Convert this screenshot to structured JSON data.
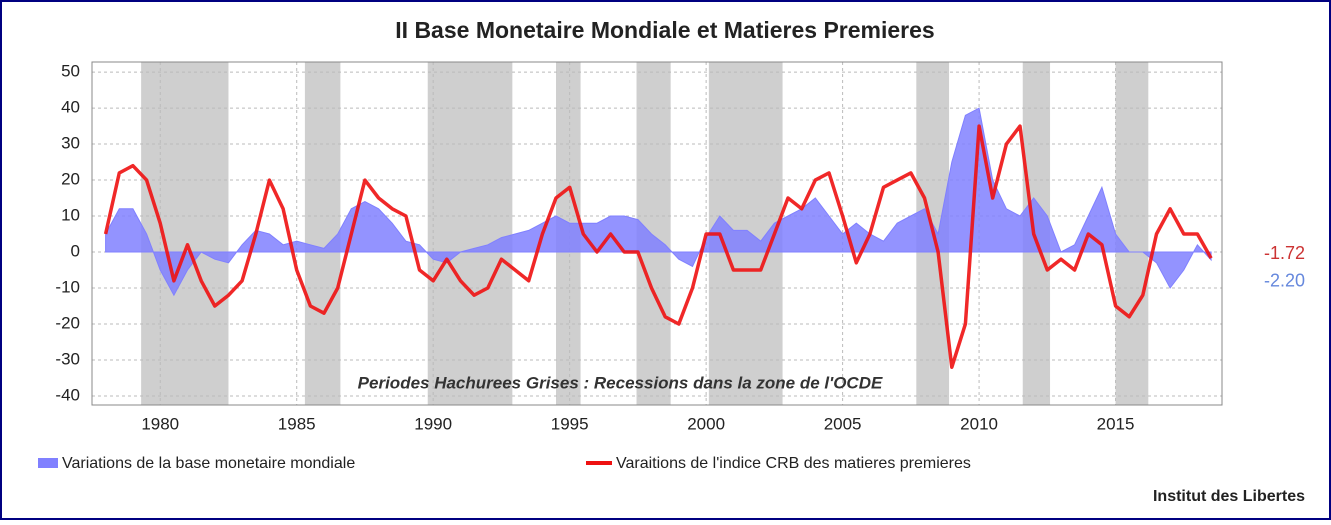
{
  "chart_data": {
    "type": "line",
    "title": "II Base Monetaire Mondiale et Matieres Premieres",
    "annotation": "Periodes Hachurees Grises : Recessions dans la zone de l'OCDE",
    "source": "Institut des Libertes",
    "xlim": [
      1977.5,
      2018.9
    ],
    "xticks": [
      1980,
      1985,
      1990,
      1995,
      2000,
      2005,
      2010,
      2015
    ],
    "ylim": [
      -42.5,
      52.8
    ],
    "yticks": [
      -40,
      -30,
      -20,
      -10,
      0,
      10,
      20,
      30,
      40,
      50
    ],
    "grid": true,
    "recessions": [
      [
        1979.3,
        1982.5
      ],
      [
        1985.3,
        1986.6
      ],
      [
        1989.8,
        1992.9
      ],
      [
        1994.5,
        1995.4
      ],
      [
        1997.45,
        1998.7
      ],
      [
        2000.1,
        2002.8
      ],
      [
        2007.7,
        2008.9
      ],
      [
        2011.6,
        2012.6
      ],
      [
        2015.0,
        2016.2
      ]
    ],
    "x": [
      1978.0,
      1978.5,
      1979.0,
      1979.5,
      1980.0,
      1980.5,
      1981.0,
      1981.5,
      1982.0,
      1982.5,
      1983.0,
      1983.5,
      1984.0,
      1984.5,
      1985.0,
      1985.5,
      1986.0,
      1986.5,
      1987.0,
      1987.5,
      1988.0,
      1988.5,
      1989.0,
      1989.5,
      1990.0,
      1990.5,
      1991.0,
      1991.5,
      1992.0,
      1992.5,
      1993.0,
      1993.5,
      1994.0,
      1994.5,
      1995.0,
      1995.5,
      1996.0,
      1996.5,
      1997.0,
      1997.5,
      1998.0,
      1998.5,
      1999.0,
      1999.5,
      2000.0,
      2000.5,
      2001.0,
      2001.5,
      2002.0,
      2002.5,
      2003.0,
      2003.5,
      2004.0,
      2004.5,
      2005.0,
      2005.5,
      2006.0,
      2006.5,
      2007.0,
      2007.5,
      2008.0,
      2008.5,
      2009.0,
      2009.5,
      2010.0,
      2010.5,
      2011.0,
      2011.5,
      2012.0,
      2012.5,
      2013.0,
      2013.5,
      2014.0,
      2014.5,
      2015.0,
      2015.5,
      2016.0,
      2016.5,
      2017.0,
      2017.5,
      2018.0,
      2018.5
    ],
    "series": [
      {
        "name": "Variations de la base monetaire mondiale",
        "kind": "area",
        "color": "#8080ff",
        "end_label": "-2.20",
        "values": [
          5,
          12,
          12,
          5,
          -5,
          -12,
          -5,
          0,
          -2,
          -3,
          2,
          6,
          5,
          2,
          3,
          2,
          1,
          5,
          12,
          14,
          12,
          8,
          3,
          2,
          -2,
          -3,
          0,
          1,
          2,
          4,
          5,
          6,
          8,
          10,
          8,
          8,
          8,
          10,
          10,
          9,
          5,
          2,
          -2,
          -4,
          4,
          10,
          6,
          6,
          3,
          8,
          10,
          12,
          15,
          10,
          5,
          8,
          5,
          3,
          8,
          10,
          12,
          5,
          25,
          38,
          40,
          20,
          12,
          10,
          15,
          10,
          0,
          2,
          10,
          18,
          5,
          0,
          0,
          -3,
          -10,
          -5,
          2,
          -2.2
        ]
      },
      {
        "name": "Varaitions de l'indice CRB des matieres premieres",
        "kind": "line",
        "color": "#ee1111",
        "end_label": "-1.72",
        "values": [
          5,
          22,
          24,
          20,
          8,
          -8,
          2,
          -8,
          -15,
          -12,
          -8,
          5,
          20,
          12,
          -5,
          -15,
          -17,
          -10,
          5,
          20,
          15,
          12,
          10,
          -5,
          -8,
          -2,
          -8,
          -12,
          -10,
          -2,
          -5,
          -8,
          5,
          15,
          18,
          5,
          0,
          5,
          0,
          0,
          -10,
          -18,
          -20,
          -10,
          5,
          5,
          -5,
          -5,
          -5,
          5,
          15,
          12,
          20,
          22,
          10,
          -3,
          5,
          18,
          20,
          22,
          15,
          0,
          -32,
          -20,
          35,
          15,
          30,
          35,
          5,
          -5,
          -2,
          -5,
          5,
          2,
          -15,
          -18,
          -12,
          5,
          12,
          5,
          5,
          -1.72
        ]
      }
    ]
  }
}
